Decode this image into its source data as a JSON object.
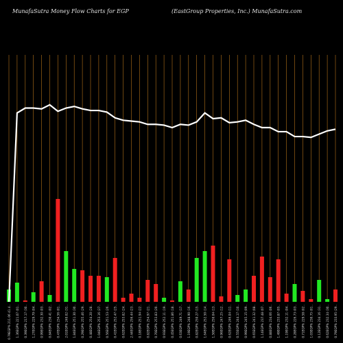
{
  "header": {
    "left": "MunafaSutra  Money Flow  Charts for EGP",
    "right": "(EastGroup Properties,  Inc.) MunafaSutra.com"
  },
  "colors": {
    "background": "#000000",
    "grid": "#b8741a",
    "up": "#22e822",
    "down": "#f02020",
    "price_line": "#ffffff"
  },
  "chart_data": {
    "type": "bar",
    "categories": [
      "0.79EGP% 211.06 41.4..",
      "1.36EGP% 221.07 (01..",
      "0.39EGP% 217.17 (30..",
      "1.27EGP% 229.79 (04..",
      "0.99EGP% 232.30 (03..",
      "0.84EGP% 230.41 (02..",
      "0.47EGP% 234.56 (01..",
      "2.01EGP% 240.02 (31..",
      "1.84EGP% 251.30 (30..",
      "0.29EGP% 255.46 (29..",
      "0.48EGP% 254.20 (28..",
      "1.04EGP% 253.16 (27..",
      "0.56EGP% 251.53 (26..",
      "0.41EGP% 252.47 (25..",
      "0.62EGP% 253.82 (24..",
      "2.44EGP% 256.44 (23..",
      "0.18EGP% 251.94 (22..",
      "0.82EGP% 254.97 (21..",
      "0.70EGP% 253.83 (20..",
      "0.93EGP% 252.11 (19..",
      "0.45EGP% 251.86 (18..",
      "0.63EGP% 249.71 (17..",
      "1.19EGP% 248.90 (16..",
      "0.82EGP% 250.27 (15..",
      "1.64EGP% 252.50 (14..",
      "1.50EGP% 250.04 (13..",
      "0.96EGP% 247.25 (12..",
      "0.62EGP% 246.04 (11..",
      "0.55EGP% 244.17 (10..",
      "0.99EGP% 245.15 (09..",
      "0.65EGP% 241.32 (08..",
      "1.14EGP% 237.48 (07..",
      "0.88EGP% 234.66 (06..",
      "1.49EGP% 233.87 (05..",
      "1.19EGP% 232.11 (04..",
      "0.28EGP% 226.73 (03..",
      "0.71EGP% 229.58 (02..",
      "1.03EGP% 230.75 (01..",
      "0.12EGP% 234.16 (31..",
      "0.62EGP% 232.34 (30..",
      "0.79EGP% 233.95 (29.."
    ],
    "volume": [
      9,
      14,
      1,
      7,
      15,
      5,
      75,
      37,
      24,
      23,
      19,
      19,
      18,
      32,
      3,
      6,
      3,
      16,
      13,
      3,
      1,
      15,
      9,
      32,
      37,
      41,
      4,
      31,
      5,
      9,
      19,
      33,
      18,
      31,
      6,
      13,
      8,
      2,
      16,
      2,
      9
    ],
    "direction": [
      "up",
      "up",
      "down",
      "up",
      "down",
      "up",
      "down",
      "up",
      "up",
      "down",
      "down",
      "down",
      "up",
      "down",
      "down",
      "down",
      "down",
      "down",
      "down",
      "up",
      "down",
      "up",
      "down",
      "up",
      "up",
      "down",
      "down",
      "down",
      "up",
      "up",
      "down",
      "down",
      "down",
      "down",
      "down",
      "up",
      "down",
      "down",
      "up",
      "up",
      "down"
    ],
    "price": [
      158,
      164,
      170,
      170,
      169,
      174,
      166,
      170,
      172,
      169,
      167,
      167,
      165,
      158,
      155,
      154,
      153,
      150,
      150,
      149,
      146,
      150,
      149,
      153,
      164,
      157,
      158,
      152,
      153,
      155,
      150,
      146,
      146,
      141,
      141,
      135,
      135,
      134,
      138,
      142,
      144
    ],
    "xlabel": "",
    "ylabel": "",
    "grid": true
  }
}
